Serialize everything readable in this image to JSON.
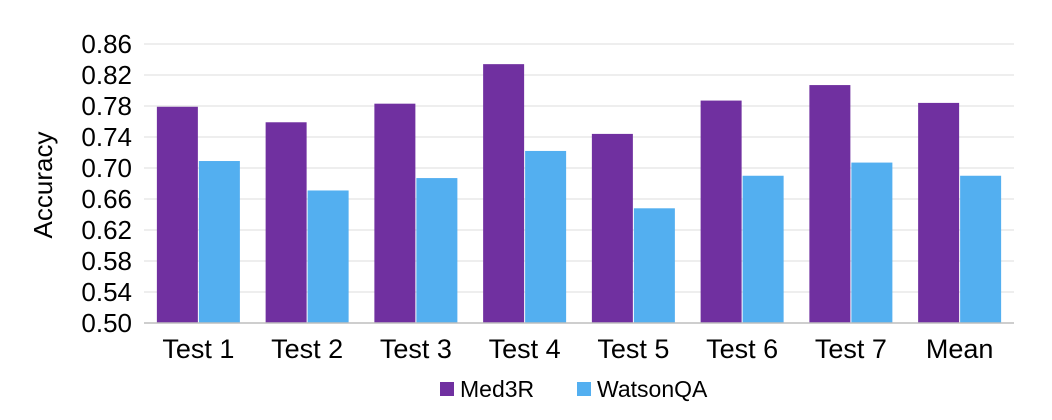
{
  "chart_data": {
    "type": "bar",
    "title": "",
    "xlabel": "",
    "ylabel": "Accuracy",
    "ylim": [
      0.5,
      0.86
    ],
    "yticks": [
      "0.50",
      "0.54",
      "0.58",
      "0.62",
      "0.66",
      "0.70",
      "0.74",
      "0.78",
      "0.82",
      "0.86"
    ],
    "grid": true,
    "legend_position": "bottom",
    "categories": [
      "Test 1",
      "Test 2",
      "Test 3",
      "Test 4",
      "Test 5",
      "Test 6",
      "Test 7",
      "Mean"
    ],
    "series": [
      {
        "name": "Med3R",
        "color": "#7030a0",
        "values": [
          0.779,
          0.759,
          0.783,
          0.834,
          0.744,
          0.787,
          0.807,
          0.784
        ]
      },
      {
        "name": "WatsonQA",
        "color": "#53aff0",
        "values": [
          0.709,
          0.671,
          0.687,
          0.722,
          0.648,
          0.69,
          0.707,
          0.69
        ]
      }
    ]
  }
}
